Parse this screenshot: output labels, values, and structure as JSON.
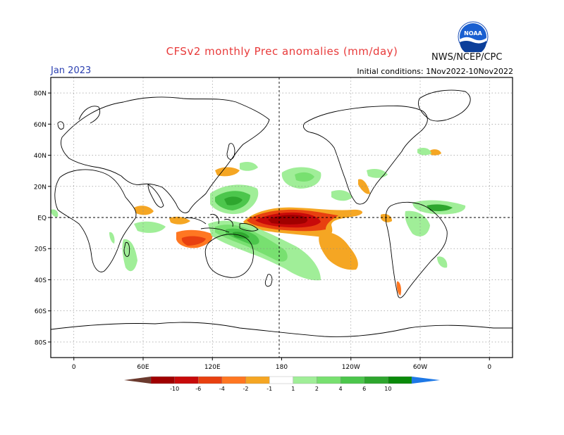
{
  "header": {
    "title": "CFSv2 monthly Prec anomalies (mm/day)",
    "period": "Jan 2023",
    "initial_conditions": "Initial conditions: 1Nov2022-10Nov2022",
    "agency": "NWS/NCEP/CPC",
    "logo_text": "NOAA",
    "logo_icon": "noaa-logo-icon"
  },
  "map": {
    "lat_labels": [
      "80N",
      "60N",
      "40N",
      "20N",
      "EQ",
      "20S",
      "40S",
      "60S",
      "80S"
    ],
    "lon_labels": [
      "0",
      "60E",
      "120E",
      "180",
      "120W",
      "60W",
      "0"
    ],
    "lat_values": [
      80,
      60,
      40,
      20,
      0,
      -20,
      -40,
      -60,
      -80
    ],
    "lon_values": [
      0,
      60,
      120,
      180,
      240,
      300,
      360
    ],
    "lon_range": [
      -20,
      380
    ],
    "lat_range": [
      -90,
      90
    ],
    "grid": true,
    "colors": {
      "dry_extreme": "#6b3a2e",
      "dry_10": "#a00000",
      "dry_6": "#c80a0a",
      "dry_4": "#e84010",
      "dry_2": "#ff7722",
      "dry_1": "#f5a623",
      "wet_1": "#a0ee98",
      "wet_2": "#78e070",
      "wet_4": "#4cc64c",
      "wet_6": "#2ea62e",
      "wet_10": "#0a8a0a",
      "wet_extreme": "#1e78e6"
    }
  },
  "colorbar": {
    "labels": [
      "-10",
      "-6",
      "-4",
      "-2",
      "-1",
      "1",
      "2",
      "4",
      "6",
      "10"
    ]
  }
}
